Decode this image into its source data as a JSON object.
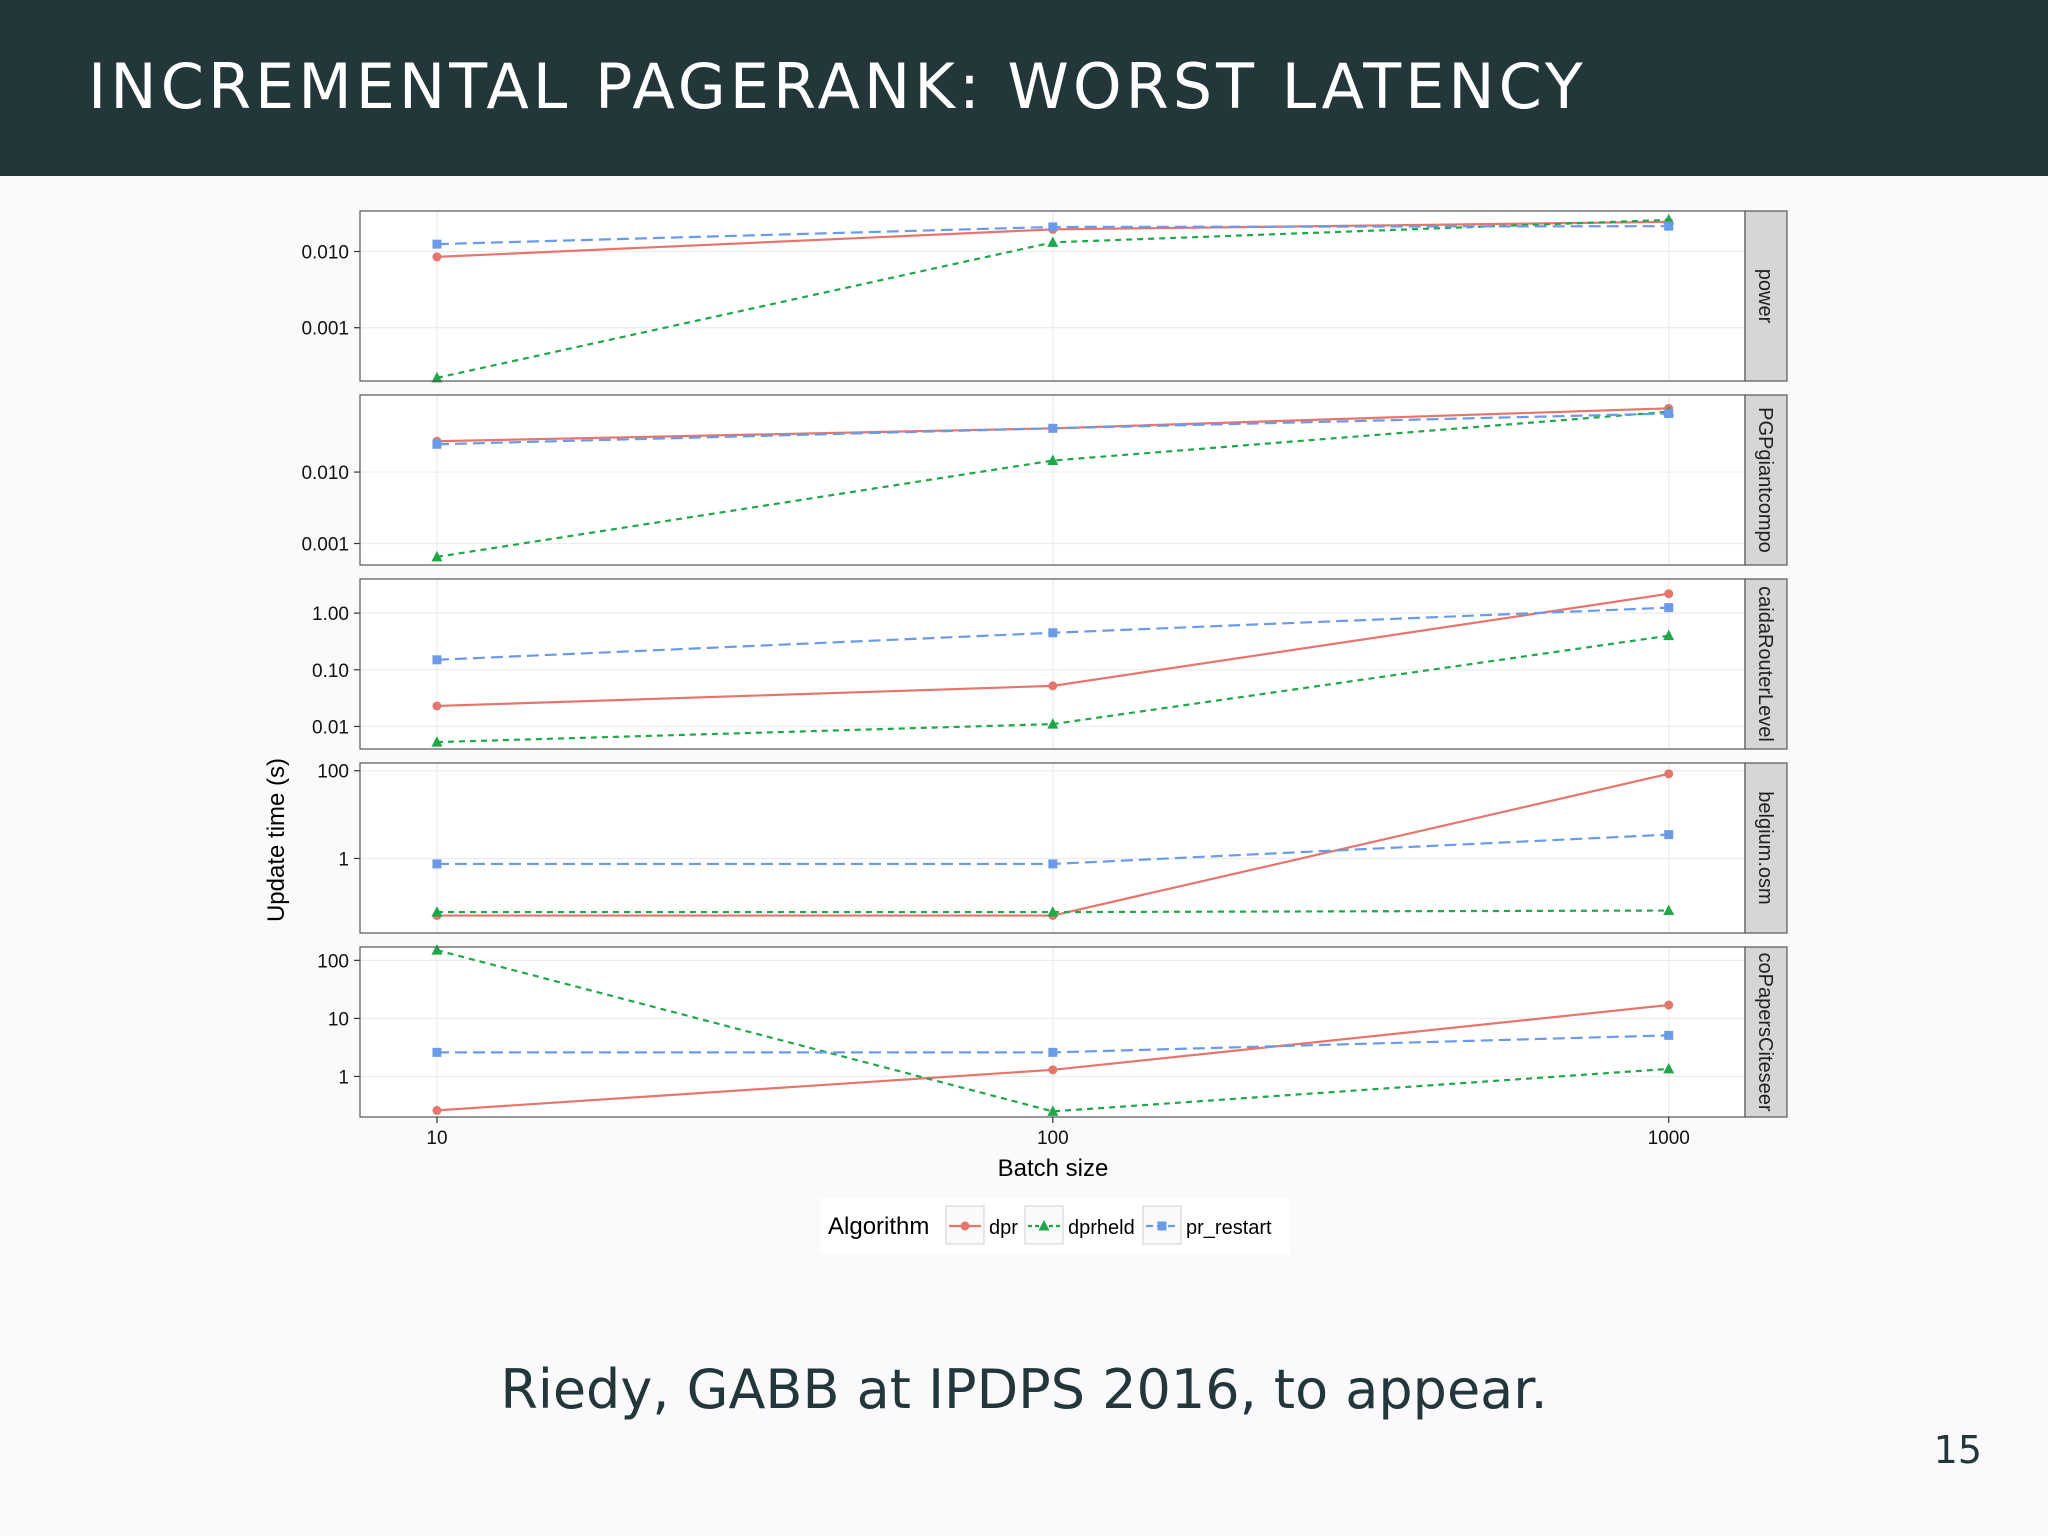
{
  "slide": {
    "title": "INCREMENTAL PAGERANK: WORST LATENCY",
    "caption": "Riedy, GABB at IPDPS 2016, to appear.",
    "page_number": "15"
  },
  "colors": {
    "header_bg": "#23373b",
    "dpr": "#e6766d",
    "dprheld": "#1fa84a",
    "pr_restart": "#6b9be6",
    "strip_bg": "#d6d6d6"
  },
  "chart_data": {
    "type": "line",
    "xlabel": "Batch size",
    "ylabel": "Update time (s)",
    "x": [
      10,
      100,
      1000
    ],
    "x_ticks": [
      "10",
      "100",
      "1000"
    ],
    "x_scale": "log",
    "y_scale": "log",
    "legend": {
      "title": "Algorithm",
      "position": "bottom",
      "entries": [
        "dpr",
        "dprheld",
        "pr_restart"
      ]
    },
    "panels": [
      {
        "label": "power",
        "ylim": [
          0.0002,
          0.034
        ],
        "y_ticks": [
          {
            "value": 0.01,
            "label": "0.010"
          },
          {
            "value": 0.001,
            "label": "0.001"
          }
        ],
        "series": [
          {
            "name": "dpr",
            "values": [
              0.0085,
              0.0195,
              0.0245
            ]
          },
          {
            "name": "dprheld",
            "values": [
              0.00022,
              0.0132,
              0.026
            ]
          },
          {
            "name": "pr_restart",
            "values": [
              0.0125,
              0.021,
              0.0215
            ]
          }
        ]
      },
      {
        "label": "PGPgiantcompo",
        "ylim": [
          0.0005,
          0.12
        ],
        "y_ticks": [
          {
            "value": 0.01,
            "label": "0.010"
          },
          {
            "value": 0.001,
            "label": "0.001"
          }
        ],
        "series": [
          {
            "name": "dpr",
            "values": [
              0.027,
              0.041,
              0.078
            ]
          },
          {
            "name": "dprheld",
            "values": [
              0.00065,
              0.0145,
              0.07
            ]
          },
          {
            "name": "pr_restart",
            "values": [
              0.0245,
              0.041,
              0.066
            ]
          }
        ]
      },
      {
        "label": "caidaRouterLevel",
        "ylim": [
          0.004,
          4.0
        ],
        "y_ticks": [
          {
            "value": 1.0,
            "label": "1.00"
          },
          {
            "value": 0.1,
            "label": "0.10"
          },
          {
            "value": 0.01,
            "label": "0.01"
          }
        ],
        "series": [
          {
            "name": "dpr",
            "values": [
              0.023,
              0.052,
              2.2
            ]
          },
          {
            "name": "dprheld",
            "values": [
              0.0053,
              0.011,
              0.4
            ]
          },
          {
            "name": "pr_restart",
            "values": [
              0.15,
              0.45,
              1.25
            ]
          }
        ]
      },
      {
        "label": "belgium.osm",
        "ylim": [
          0.02,
          150
        ],
        "y_ticks": [
          {
            "value": 100,
            "label": "100"
          },
          {
            "value": 1,
            "label": "1"
          }
        ],
        "series": [
          {
            "name": "dpr",
            "values": [
              0.05,
              0.05,
              85
            ]
          },
          {
            "name": "dprheld",
            "values": [
              0.06,
              0.06,
              0.065
            ]
          },
          {
            "name": "pr_restart",
            "values": [
              0.75,
              0.75,
              3.5
            ]
          }
        ]
      },
      {
        "label": "coPapersCiteseer",
        "ylim": [
          0.2,
          170
        ],
        "y_ticks": [
          {
            "value": 100,
            "label": "100"
          },
          {
            "value": 10,
            "label": "10"
          },
          {
            "value": 1,
            "label": "1"
          }
        ],
        "series": [
          {
            "name": "dpr",
            "values": [
              0.26,
              1.3,
              17
            ]
          },
          {
            "name": "dprheld",
            "values": [
              150,
              0.25,
              1.35
            ]
          },
          {
            "name": "pr_restart",
            "values": [
              2.6,
              2.6,
              5.1
            ]
          }
        ]
      }
    ]
  }
}
